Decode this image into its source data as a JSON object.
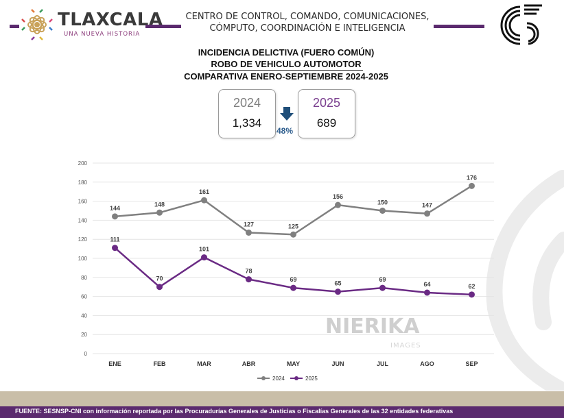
{
  "header": {
    "brand_name": "TLAXCALA",
    "brand_slogan": "UNA NUEVA HISTORIA",
    "org_line1": "CENTRO DE CONTROL, COMANDO, COMUNICACIONES,",
    "org_line2": "CÓMPUTO, COORDINACIÓN E INTELIGENCIA",
    "accent_color": "#5b2a6e"
  },
  "title": {
    "line1": "INCIDENCIA DELICTIVA (FUERO COMÚN)",
    "line2": "ROBO DE VEHICULO AUTOMOTOR",
    "line3": "COMPARATIVA ENERO-SEPTIEMBRE 2024-2025"
  },
  "comparison": {
    "year_a": "2024",
    "total_a": "1,334",
    "year_b": "2025",
    "total_b": "689",
    "change_pct": "48%",
    "change_direction": "down",
    "year_a_color": "#7f7f7f",
    "year_b_color": "#7a3f8f",
    "arrow_color": "#1f4e79"
  },
  "chart_data": {
    "type": "line",
    "categories": [
      "ENE",
      "FEB",
      "MAR",
      "ABR",
      "MAY",
      "JUN",
      "JUL",
      "AGO",
      "SEP"
    ],
    "series": [
      {
        "name": "2024",
        "values": [
          144,
          148,
          161,
          127,
          125,
          156,
          150,
          147,
          176
        ],
        "color": "#808080"
      },
      {
        "name": "2025",
        "values": [
          111,
          70,
          101,
          78,
          69,
          65,
          69,
          64,
          62
        ],
        "color": "#6a2a84"
      }
    ],
    "ylim": [
      0,
      200
    ],
    "yticks": [
      0,
      20,
      40,
      60,
      80,
      100,
      120,
      140,
      160,
      180,
      200
    ],
    "grid": true,
    "legend": "bottom-center",
    "data_labels": true
  },
  "watermark": {
    "name": "NIERIKA",
    "sub": "IMAGES"
  },
  "footer": {
    "source": "FUENTE: SESNSP-CNI con información reportada por las Procuradurías Generales de Justicias o Fiscalías Generales de las 32 entidades federativas"
  }
}
